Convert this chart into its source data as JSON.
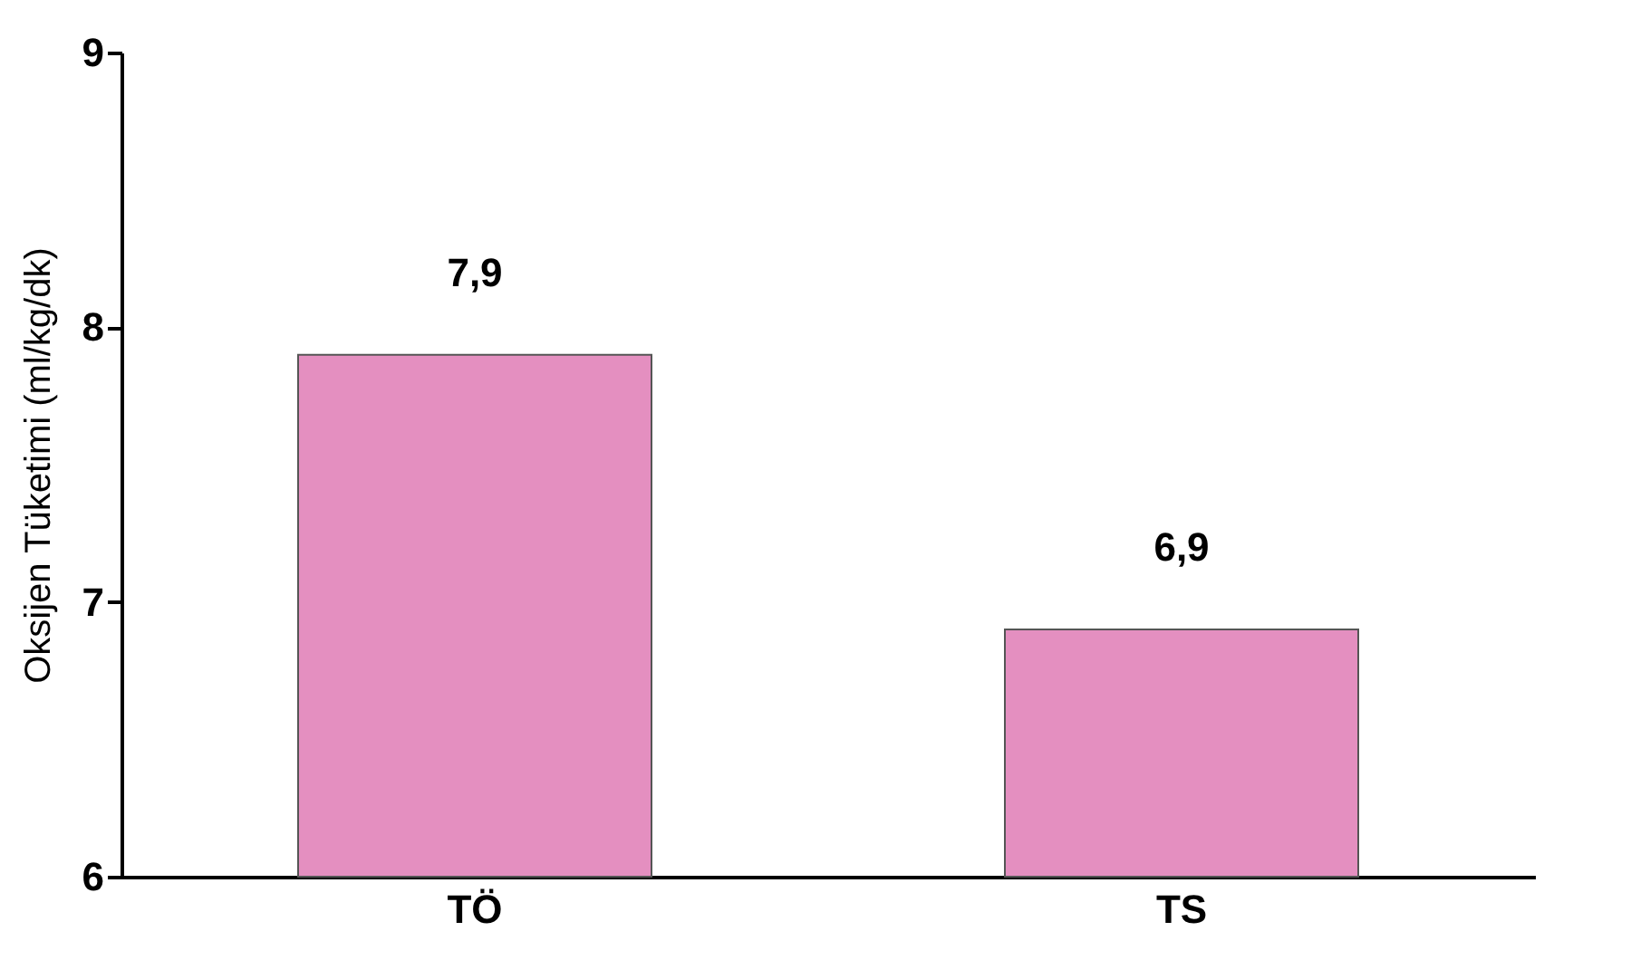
{
  "chart_data": {
    "type": "bar",
    "ylabel": "Oksijen Tüketimi (ml/kg/dk)",
    "categories": [
      "TÖ",
      "TS"
    ],
    "values": [
      7.9,
      6.9
    ],
    "value_labels": [
      "7,9",
      "6,9"
    ],
    "color": "#e48fc0",
    "ylim": [
      6,
      9
    ],
    "yticks": [
      6,
      7,
      8,
      9
    ],
    "grid": false
  }
}
